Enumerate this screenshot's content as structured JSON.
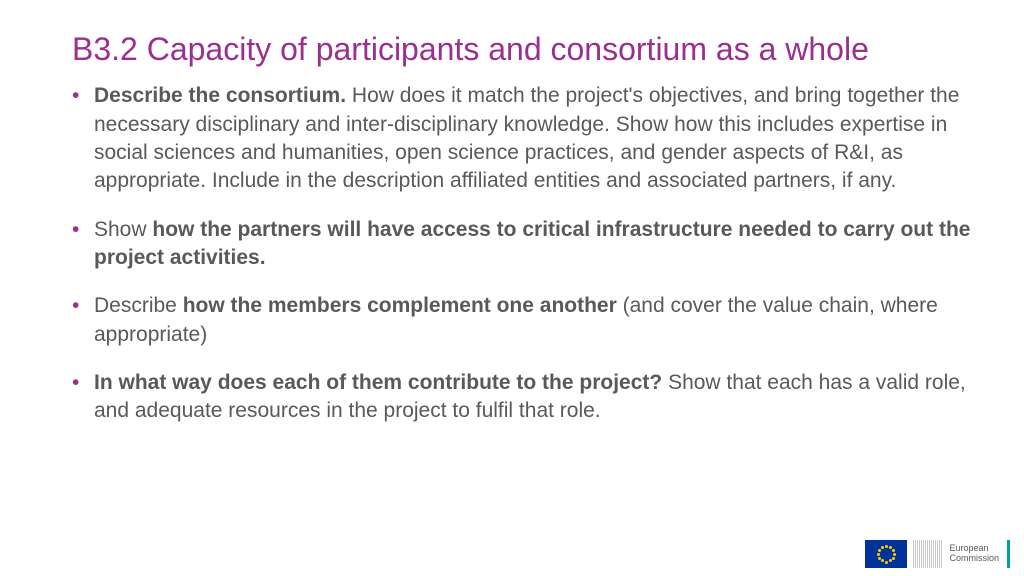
{
  "colors": {
    "title": "#9b2f8f",
    "bullet_marker": "#9b2f8f",
    "body_text": "#595959",
    "background": "#ffffff",
    "eu_flag_bg": "#003399",
    "eu_star": "#ffcc00",
    "accent": "#00a3a3"
  },
  "typography": {
    "title_fontsize": 32,
    "title_weight": 400,
    "body_fontsize": 21,
    "body_line_height": 1.35
  },
  "title": "B3.2  Capacity of participants and consortium as a whole",
  "bullets": [
    {
      "segments": [
        {
          "text": "Describe the consortium.",
          "bold": true
        },
        {
          "text": " How does it match the project's objectives, and bring together the necessary disciplinary and inter-disciplinary knowledge. Show how this includes expertise in social sciences and humanities, open science practices, and gender aspects of R&I, as appropriate. Include in the description affiliated entities and associated partners, if any.",
          "bold": false
        }
      ]
    },
    {
      "segments": [
        {
          "text": "Show ",
          "bold": false
        },
        {
          "text": "how the partners will have access to critical infrastructure needed to carry out the project activities.",
          "bold": true
        }
      ]
    },
    {
      "segments": [
        {
          "text": "Describe ",
          "bold": false
        },
        {
          "text": "how the members complement one another",
          "bold": true
        },
        {
          "text": " (and cover the value chain, where appropriate)",
          "bold": false
        }
      ]
    },
    {
      "segments": [
        {
          "text": "In what way does each of them contribute to the project?",
          "bold": true
        },
        {
          "text": " Show that each has a valid role, and adequate resources in the project to fulfil that role.",
          "bold": false
        }
      ]
    }
  ],
  "footer": {
    "org_line1": "European",
    "org_line2": "Commission"
  }
}
